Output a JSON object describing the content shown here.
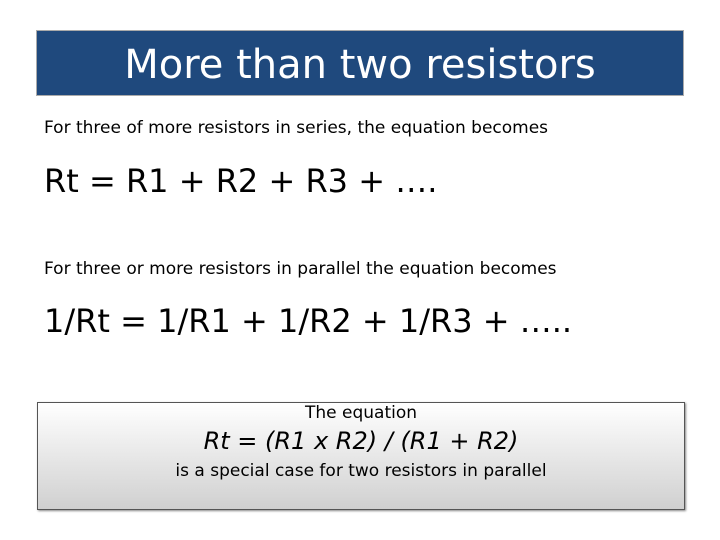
{
  "header": {
    "title": "More than two resistors"
  },
  "body": {
    "series_intro": "For three of more resistors in series, the equation becomes",
    "series_equation": "Rt = R1 + R2 + R3 + ….",
    "parallel_intro": "For three or more resistors in parallel the equation becomes",
    "parallel_equation": "1/Rt = 1/R1 + 1/R2 + 1/R3 + …..",
    "note": {
      "line1": "The equation",
      "equation": "Rt = (R1 x R2) / (R1 + R2)",
      "line3": "is a special case for two resistors in parallel"
    }
  }
}
